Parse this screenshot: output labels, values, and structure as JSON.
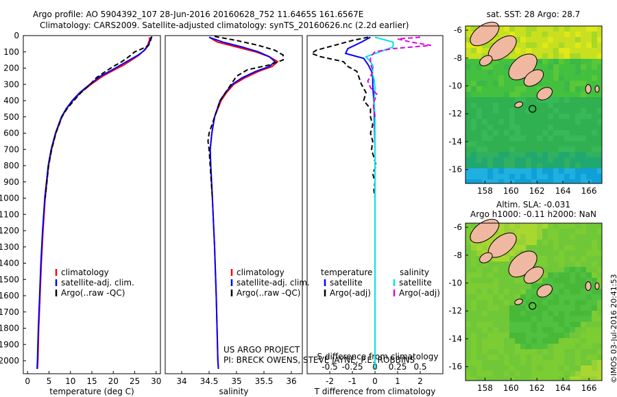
{
  "header": {
    "title": "Argo profile: AO 5904392_107 28-Jun-2016 20160628_752 11.6465S 161.6567E",
    "subtitle": "Climatology: CARS2009. Satellite-adjusted climatology: synTS_20160626.nc (2.2d earlier)"
  },
  "colors": {
    "climatology": "#ff0000",
    "satellite": "#0000ff",
    "argo": "#000000",
    "sat_salinity": "#00e5e5",
    "argo_salinity_adj": "#e000e0"
  },
  "chart_data": [
    {
      "type": "line",
      "title": "",
      "xlabel": "temperature (deg C)",
      "ylabel": "",
      "xlim": [
        -1,
        31
      ],
      "ylim": [
        2080,
        0
      ],
      "xticks": [
        0,
        5,
        10,
        15,
        20,
        25,
        30
      ],
      "yticks": [
        0,
        100,
        200,
        300,
        400,
        500,
        600,
        700,
        800,
        900,
        1000,
        1100,
        1200,
        1300,
        1400,
        1500,
        1600,
        1700,
        1800,
        1900,
        2000
      ],
      "legend": [
        "climatology",
        "satellite-adj. clim.",
        "Argo(..raw -QC)"
      ],
      "series": [
        {
          "name": "climatology",
          "depth": [
            10,
            30,
            60,
            90,
            120,
            150,
            180,
            210,
            250,
            300,
            350,
            400,
            450,
            500,
            600,
            700,
            800,
            1000,
            1200,
            1400,
            1600,
            1800,
            2000,
            2050
          ],
          "values": [
            28.5,
            28.4,
            28.0,
            27.2,
            26.0,
            24.3,
            22.5,
            20.3,
            17.5,
            14.8,
            12.4,
            10.6,
            9.1,
            8.0,
            6.6,
            5.6,
            4.9,
            4.1,
            3.6,
            3.2,
            2.9,
            2.6,
            2.4,
            2.3
          ]
        },
        {
          "name": "satellite-adj. clim.",
          "depth": [
            10,
            30,
            60,
            90,
            120,
            150,
            180,
            210,
            250,
            300,
            350,
            400,
            450,
            500,
            600,
            700,
            800,
            1000,
            1200,
            1400,
            1600,
            1800,
            2000,
            2050
          ],
          "values": [
            28.8,
            28.6,
            28.2,
            27.3,
            25.8,
            23.8,
            21.8,
            19.8,
            17.0,
            14.5,
            12.2,
            10.4,
            9.0,
            7.9,
            6.5,
            5.5,
            4.8,
            4.0,
            3.5,
            3.1,
            2.8,
            2.5,
            2.3,
            2.2
          ]
        },
        {
          "name": "Argo(..raw -QC)",
          "depth": [
            5,
            20,
            40,
            60,
            80,
            100,
            130,
            160,
            190,
            220,
            260,
            300,
            350,
            400,
            450,
            500,
            600,
            700,
            800,
            900,
            1000
          ],
          "values": [
            29.0,
            28.8,
            28.6,
            28.2,
            26.8,
            25.0,
            23.6,
            22.0,
            20.0,
            18.2,
            16.0,
            14.6,
            12.5,
            10.8,
            9.2,
            8.0,
            6.6,
            5.6,
            4.9,
            4.5,
            4.1
          ]
        }
      ]
    },
    {
      "type": "line",
      "xlabel": "salinity",
      "xlim": [
        33.7,
        36.2
      ],
      "ylim": [
        2080,
        0
      ],
      "xticks": [
        34,
        34.5,
        35,
        35.5,
        36
      ],
      "legend": [
        "climatology",
        "satellite-adj. clim.",
        "Argo(..raw -QC)"
      ],
      "annotation": [
        "US ARGO PROJECT",
        "PI: BRECK OWENS, STEVE JAYNE, P.E. ROBBINS"
      ],
      "series": [
        {
          "name": "climatology",
          "depth": [
            10,
            40,
            70,
            100,
            130,
            160,
            190,
            220,
            260,
            300,
            350,
            400,
            450,
            500,
            600,
            700,
            800,
            1000,
            1300,
            1600,
            2000,
            2050
          ],
          "values": [
            34.5,
            34.65,
            35.0,
            35.35,
            35.6,
            35.75,
            35.65,
            35.4,
            35.15,
            34.95,
            34.82,
            34.72,
            34.66,
            34.6,
            34.55,
            34.52,
            34.53,
            34.56,
            34.6,
            34.63,
            34.66,
            34.67
          ]
        },
        {
          "name": "satellite-adj. clim.",
          "depth": [
            10,
            40,
            70,
            100,
            130,
            160,
            190,
            220,
            260,
            300,
            350,
            400,
            450,
            500,
            600,
            700,
            800,
            1000,
            1300,
            1600,
            2000,
            2050
          ],
          "values": [
            34.5,
            34.75,
            35.1,
            35.4,
            35.6,
            35.7,
            35.6,
            35.35,
            35.1,
            34.92,
            34.8,
            34.7,
            34.65,
            34.6,
            34.55,
            34.52,
            34.53,
            34.56,
            34.6,
            34.63,
            34.66,
            34.67
          ]
        },
        {
          "name": "Argo(..raw -QC)",
          "depth": [
            5,
            30,
            60,
            90,
            120,
            150,
            180,
            210,
            250,
            300,
            350,
            400,
            450,
            500,
            600,
            650,
            700,
            800,
            900,
            1000
          ],
          "values": [
            34.6,
            35.0,
            35.4,
            35.7,
            35.85,
            35.85,
            35.6,
            35.2,
            35.0,
            34.9,
            34.8,
            34.7,
            34.65,
            34.6,
            34.5,
            34.48,
            34.5,
            34.52,
            34.54,
            34.56
          ]
        }
      ]
    },
    {
      "type": "line",
      "xlabel": "T difference from climatology",
      "xlabel_top": "S difference from climatology",
      "xlim": [
        -3,
        3
      ],
      "ylim": [
        2080,
        0
      ],
      "xticks": [
        -2,
        -1,
        0,
        1,
        2
      ],
      "xticks_top": [
        "-0.5",
        "-0.25",
        "0",
        "0.25",
        "0.5"
      ],
      "legend_left_title": "temperature",
      "legend_right_title": "salinity",
      "legend": [
        "satellite",
        "Argo(-adj)",
        "satellite",
        "Argo(-adj)"
      ],
      "series": [
        {
          "name": "temperature satellite",
          "depth": [
            10,
            40,
            80,
            110,
            140,
            180,
            220,
            260,
            300,
            350,
            400,
            500,
            700,
            1000,
            1500,
            2050
          ],
          "values": [
            -0.2,
            -0.6,
            -1.2,
            -1.3,
            -0.5,
            -0.3,
            -0.15,
            -0.1,
            -0.1,
            -0.08,
            -0.05,
            -0.03,
            0,
            0,
            0,
            0
          ]
        },
        {
          "name": "temperature Argo(-adj)",
          "depth": [
            10,
            30,
            60,
            90,
            110,
            130,
            160,
            190,
            220,
            260,
            300,
            350,
            400,
            450,
            500,
            550,
            600,
            650,
            700,
            750,
            800,
            850,
            900,
            950,
            1000
          ],
          "values": [
            -0.3,
            -1.0,
            -1.8,
            -2.6,
            -2.8,
            -2.4,
            -1.4,
            -1.2,
            -0.8,
            -0.7,
            -0.6,
            -0.4,
            -0.5,
            -0.2,
            -0.2,
            -0.1,
            -0.2,
            -0.1,
            -0.15,
            -0.05,
            0.05,
            -0.1,
            0,
            -0.05,
            0
          ]
        },
        {
          "name": "salinity satellite",
          "depth": [
            10,
            40,
            70,
            100,
            130,
            160,
            190,
            230,
            270,
            320,
            400,
            500,
            700,
            1000,
            1500,
            2050
          ],
          "values": [
            0.0,
            0.2,
            0.2,
            0.05,
            -0.1,
            -0.05,
            -0.02,
            -0.03,
            -0.01,
            0.0,
            -0.01,
            0.0,
            0.0,
            0.0,
            0.0,
            0.0
          ]
        },
        {
          "name": "salinity Argo(-adj)",
          "depth": [
            10,
            20,
            40,
            60,
            80,
            100,
            130,
            170,
            220,
            280,
            320,
            360,
            420,
            500
          ],
          "values": [
            0.5,
            0.25,
            0.4,
            0.62,
            0.2,
            0.0,
            -0.05,
            -0.05,
            -0.02,
            -0.08,
            -0.05,
            0.02,
            -0.02,
            0.0
          ]
        }
      ]
    },
    {
      "type": "heatmap",
      "title": "sat. SST: 28 Argo: 28.7",
      "xlim": [
        156.5,
        167
      ],
      "ylim": [
        -17,
        -5.7
      ],
      "xticks": [
        158,
        160,
        162,
        164,
        166
      ],
      "yticks": [
        -6,
        -8,
        -10,
        -12,
        -14,
        -16
      ]
    },
    {
      "type": "heatmap",
      "title": "Altim. SLA: -0.031",
      "subtitle": "Argo h1000: -0.11 h2000: NaN",
      "xlim": [
        156.5,
        167
      ],
      "ylim": [
        -17,
        -5.7
      ],
      "xticks": [
        158,
        160,
        162,
        164,
        166
      ],
      "yticks": [
        -6,
        -8,
        -10,
        -12,
        -14,
        -16
      ]
    }
  ],
  "footer": {
    "credit": "©IMOS 03-Jul-2016 20:41:53"
  }
}
